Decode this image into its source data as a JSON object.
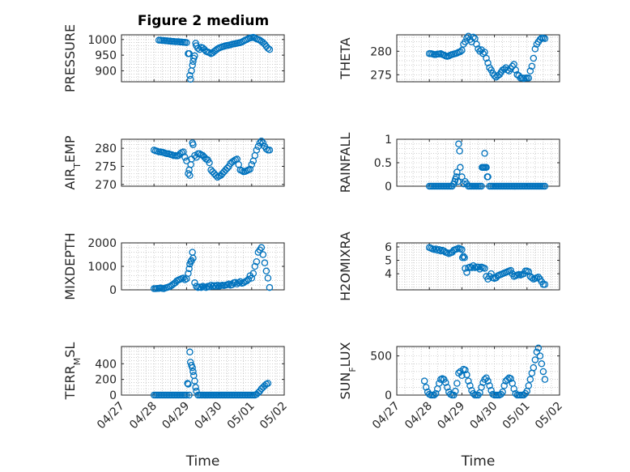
{
  "figure": {
    "title": "Figure 2 medium"
  },
  "colors": {
    "marker": "#0072BD",
    "axis": "#262626",
    "grid": "#b0b0b0"
  },
  "time_ticks": [
    "04/27",
    "04/28",
    "04/29",
    "04/30",
    "05/01",
    "05/02"
  ],
  "chart_data": [
    {
      "type": "scatter",
      "title": "Figure 2 medium",
      "ylabel": "PRESSURE",
      "ylim": [
        865,
        1015
      ],
      "yticks": [
        900,
        950,
        1000
      ],
      "xlim": [
        0,
        5
      ],
      "grid": true,
      "x": [
        1.15,
        1.2,
        1.25,
        1.3,
        1.35,
        1.4,
        1.45,
        1.5,
        1.55,
        1.6,
        1.65,
        1.7,
        1.75,
        1.8,
        1.85,
        1.9,
        1.95,
        2.0,
        2.05,
        2.08,
        2.1,
        2.12,
        2.15,
        2.18,
        2.2,
        2.22,
        2.25,
        2.28,
        2.3,
        2.35,
        2.4,
        2.45,
        2.5,
        2.55,
        2.6,
        2.65,
        2.7,
        2.75,
        2.8,
        2.85,
        2.9,
        2.95,
        3.0,
        3.05,
        3.1,
        3.15,
        3.2,
        3.25,
        3.3,
        3.35,
        3.4,
        3.45,
        3.5,
        3.55,
        3.6,
        3.65,
        3.7,
        3.75,
        3.8,
        3.85,
        3.9,
        3.95,
        4.0,
        4.05,
        4.1,
        4.15,
        4.2,
        4.25,
        4.3,
        4.35,
        4.4,
        4.45,
        4.5,
        4.55
      ],
      "y": [
        998,
        998,
        997,
        997,
        996,
        996,
        995,
        995,
        994,
        994,
        993,
        993,
        993,
        992,
        992,
        991,
        991,
        990,
        955,
        955,
        885,
        873,
        900,
        918,
        930,
        940,
        948,
        988,
        980,
        972,
        968,
        975,
        973,
        968,
        962,
        960,
        958,
        955,
        957,
        962,
        966,
        970,
        973,
        975,
        977,
        978,
        980,
        981,
        982,
        983,
        985,
        986,
        987,
        988,
        989,
        990,
        992,
        995,
        998,
        1000,
        1003,
        1005,
        1006,
        1007,
        1005,
        1002,
        1000,
        998,
        994,
        990,
        985,
        978,
        972,
        968
      ]
    },
    {
      "type": "scatter",
      "ylabel": "THETA",
      "ylim": [
        273.5,
        283.5
      ],
      "yticks": [
        275,
        280
      ],
      "xlim": [
        0,
        5
      ],
      "grid": true,
      "x": [
        1.0,
        1.05,
        1.1,
        1.15,
        1.2,
        1.25,
        1.3,
        1.35,
        1.4,
        1.45,
        1.5,
        1.55,
        1.6,
        1.65,
        1.7,
        1.75,
        1.8,
        1.85,
        1.9,
        1.95,
        2.0,
        2.05,
        2.1,
        2.15,
        2.2,
        2.25,
        2.3,
        2.35,
        2.4,
        2.45,
        2.5,
        2.55,
        2.6,
        2.65,
        2.7,
        2.75,
        2.8,
        2.85,
        2.9,
        2.95,
        3.0,
        3.05,
        3.1,
        3.15,
        3.2,
        3.25,
        3.3,
        3.35,
        3.4,
        3.45,
        3.5,
        3.55,
        3.6,
        3.65,
        3.7,
        3.75,
        3.8,
        3.85,
        3.9,
        3.95,
        4.0,
        4.05,
        4.1,
        4.15,
        4.2,
        4.25,
        4.3,
        4.35,
        4.4,
        4.45,
        4.5,
        4.55
      ],
      "y": [
        279.5,
        279.5,
        279.4,
        279.3,
        279.3,
        279.4,
        279.4,
        279.5,
        279.3,
        279.2,
        279.0,
        278.9,
        279.0,
        279.2,
        279.3,
        279.4,
        279.5,
        279.6,
        279.8,
        279.9,
        280.2,
        281.5,
        282.0,
        282.8,
        283.2,
        282.5,
        282.0,
        283.0,
        282.7,
        281.5,
        280.5,
        280.0,
        280.3,
        279.5,
        279.8,
        278.5,
        277.5,
        276.5,
        276.0,
        275.3,
        274.8,
        274.5,
        274.8,
        275.0,
        275.5,
        276.0,
        276.2,
        276.5,
        276.0,
        275.8,
        276.3,
        276.8,
        277.2,
        276.0,
        275.0,
        274.8,
        274.3,
        274.3,
        274.2,
        274.3,
        274.3,
        274.3,
        275.8,
        276.8,
        278.5,
        280.5,
        281.5,
        282.0,
        282.5,
        282.8,
        282.8,
        282.7
      ]
    },
    {
      "type": "scatter",
      "ylabel": "AIR_TEMP",
      "ylim": [
        269.5,
        282.5
      ],
      "yticks": [
        270,
        275,
        280
      ],
      "xlim": [
        0,
        5
      ],
      "grid": true,
      "x": [
        1.0,
        1.05,
        1.1,
        1.15,
        1.2,
        1.25,
        1.3,
        1.35,
        1.4,
        1.45,
        1.5,
        1.55,
        1.6,
        1.65,
        1.7,
        1.75,
        1.8,
        1.85,
        1.9,
        1.95,
        2.0,
        2.05,
        2.08,
        2.1,
        2.13,
        2.15,
        2.18,
        2.2,
        2.25,
        2.3,
        2.35,
        2.4,
        2.45,
        2.5,
        2.55,
        2.6,
        2.65,
        2.7,
        2.75,
        2.8,
        2.85,
        2.9,
        2.95,
        3.0,
        3.05,
        3.1,
        3.15,
        3.2,
        3.25,
        3.3,
        3.35,
        3.4,
        3.45,
        3.5,
        3.55,
        3.6,
        3.65,
        3.7,
        3.75,
        3.8,
        3.85,
        3.9,
        3.95,
        4.0,
        4.05,
        4.1,
        4.15,
        4.2,
        4.25,
        4.3,
        4.35,
        4.4,
        4.45,
        4.5,
        4.55
      ],
      "y": [
        279.5,
        279.3,
        279.2,
        279.0,
        279.0,
        278.9,
        278.8,
        278.6,
        278.5,
        278.5,
        278.3,
        278.2,
        278.0,
        278.0,
        277.9,
        278.0,
        278.5,
        278.8,
        279.0,
        277.5,
        276.5,
        273.0,
        274.0,
        272.5,
        275.5,
        277.0,
        281.5,
        281.0,
        278.0,
        277.5,
        278.5,
        278.5,
        278.2,
        278.0,
        277.5,
        277.0,
        276.8,
        276.0,
        274.0,
        273.5,
        273.0,
        272.5,
        272.0,
        272.3,
        272.5,
        273.0,
        273.5,
        274.0,
        274.5,
        275.0,
        275.8,
        276.2,
        276.5,
        276.8,
        277.0,
        275.5,
        274.0,
        273.8,
        273.5,
        273.6,
        273.8,
        274.0,
        274.2,
        275.5,
        276.5,
        278.0,
        279.5,
        280.5,
        281.5,
        282.0,
        281.5,
        280.5,
        279.8,
        279.5,
        279.5
      ]
    },
    {
      "type": "scatter",
      "ylabel": "RAINFALL",
      "ylim": [
        0,
        1
      ],
      "yticks": [
        0,
        0.5,
        1
      ],
      "xlim": [
        0,
        5
      ],
      "grid": true,
      "x": [
        1.0,
        1.05,
        1.1,
        1.15,
        1.2,
        1.25,
        1.3,
        1.35,
        1.4,
        1.45,
        1.5,
        1.55,
        1.6,
        1.65,
        1.7,
        1.75,
        1.78,
        1.8,
        1.83,
        1.85,
        1.88,
        1.9,
        1.93,
        1.95,
        2.0,
        2.05,
        2.1,
        2.15,
        2.2,
        2.25,
        2.3,
        2.35,
        2.4,
        2.45,
        2.5,
        2.55,
        2.6,
        2.62,
        2.65,
        2.68,
        2.7,
        2.72,
        2.75,
        2.78,
        2.8,
        2.85,
        2.9,
        2.95,
        3.0,
        3.05,
        3.1,
        3.15,
        3.2,
        3.25,
        3.3,
        3.35,
        3.4,
        3.45,
        3.5,
        3.55,
        3.6,
        3.65,
        3.7,
        3.75,
        3.8,
        3.85,
        3.9,
        3.95,
        4.0,
        4.05,
        4.1,
        4.15,
        4.2,
        4.25,
        4.3,
        4.35,
        4.4,
        4.45,
        4.5,
        4.55
      ],
      "y": [
        0,
        0,
        0,
        0,
        0,
        0,
        0,
        0,
        0,
        0,
        0,
        0,
        0,
        0,
        0,
        0.05,
        0.1,
        0.15,
        0.2,
        0.3,
        0.1,
        0.9,
        0.75,
        0.4,
        0.2,
        0.05,
        0.1,
        0.05,
        0,
        0,
        0,
        0,
        0,
        0,
        0,
        0,
        0,
        0.4,
        0.4,
        0.4,
        0.7,
        0.4,
        0.4,
        0.2,
        0.2,
        0,
        0,
        0,
        0,
        0,
        0,
        0,
        0,
        0,
        0,
        0,
        0,
        0,
        0,
        0,
        0,
        0,
        0,
        0,
        0,
        0,
        0,
        0,
        0,
        0,
        0,
        0,
        0,
        0,
        0,
        0,
        0,
        0,
        0,
        0
      ]
    },
    {
      "type": "scatter",
      "ylabel": "MIXDEPTH",
      "ylim": [
        0,
        2000
      ],
      "yticks": [
        0,
        1000,
        2000
      ],
      "xlim": [
        0,
        5
      ],
      "grid": true,
      "x": [
        1.0,
        1.05,
        1.1,
        1.15,
        1.2,
        1.25,
        1.3,
        1.35,
        1.4,
        1.45,
        1.5,
        1.55,
        1.6,
        1.65,
        1.7,
        1.75,
        1.8,
        1.85,
        1.9,
        1.95,
        2.0,
        2.05,
        2.08,
        2.1,
        2.13,
        2.15,
        2.18,
        2.2,
        2.25,
        2.3,
        2.35,
        2.4,
        2.45,
        2.5,
        2.55,
        2.6,
        2.65,
        2.7,
        2.75,
        2.8,
        2.85,
        2.9,
        2.95,
        3.0,
        3.05,
        3.1,
        3.15,
        3.2,
        3.25,
        3.3,
        3.35,
        3.4,
        3.45,
        3.5,
        3.55,
        3.6,
        3.65,
        3.7,
        3.75,
        3.8,
        3.85,
        3.9,
        3.95,
        4.0,
        4.05,
        4.1,
        4.15,
        4.2,
        4.25,
        4.3,
        4.35,
        4.4,
        4.45,
        4.5,
        4.55
      ],
      "y": [
        50,
        50,
        60,
        60,
        80,
        60,
        50,
        80,
        100,
        120,
        150,
        200,
        250,
        300,
        380,
        420,
        450,
        480,
        500,
        430,
        470,
        700,
        900,
        1100,
        1200,
        1250,
        1600,
        1350,
        300,
        150,
        100,
        120,
        100,
        150,
        120,
        100,
        150,
        130,
        200,
        150,
        180,
        150,
        200,
        150,
        180,
        200,
        180,
        200,
        220,
        250,
        200,
        220,
        300,
        320,
        250,
        300,
        350,
        280,
        300,
        350,
        380,
        450,
        600,
        500,
        700,
        1000,
        1200,
        1600,
        1700,
        1800,
        1500,
        1150,
        800,
        500,
        100
      ]
    },
    {
      "type": "scatter",
      "ylabel": "H2OMIXRA",
      "ylim": [
        2.8,
        6.3
      ],
      "yticks": [
        4,
        5,
        6
      ],
      "xlim": [
        0,
        5
      ],
      "grid": true,
      "x": [
        1.0,
        1.05,
        1.1,
        1.15,
        1.2,
        1.25,
        1.3,
        1.35,
        1.4,
        1.45,
        1.5,
        1.55,
        1.6,
        1.65,
        1.7,
        1.75,
        1.8,
        1.85,
        1.9,
        1.95,
        2.0,
        2.02,
        2.05,
        2.08,
        2.1,
        2.15,
        2.2,
        2.25,
        2.3,
        2.35,
        2.4,
        2.45,
        2.5,
        2.55,
        2.6,
        2.65,
        2.7,
        2.75,
        2.8,
        2.85,
        2.9,
        2.95,
        3.0,
        3.05,
        3.1,
        3.15,
        3.2,
        3.25,
        3.3,
        3.35,
        3.4,
        3.45,
        3.5,
        3.55,
        3.6,
        3.65,
        3.7,
        3.75,
        3.8,
        3.85,
        3.9,
        3.95,
        4.0,
        4.05,
        4.1,
        4.15,
        4.2,
        4.25,
        4.3,
        4.35,
        4.4,
        4.45,
        4.5,
        4.55
      ],
      "y": [
        5.95,
        5.9,
        5.85,
        5.8,
        5.85,
        5.75,
        5.8,
        5.7,
        5.75,
        5.7,
        5.6,
        5.55,
        5.5,
        5.55,
        5.6,
        5.75,
        5.8,
        5.85,
        5.9,
        5.85,
        5.8,
        5.2,
        5.3,
        5.2,
        4.4,
        4.1,
        4.45,
        4.5,
        4.45,
        4.6,
        4.45,
        4.5,
        4.5,
        4.35,
        4.5,
        4.45,
        4.4,
        3.8,
        3.6,
        3.8,
        4.0,
        3.7,
        3.65,
        3.7,
        3.85,
        3.9,
        3.95,
        4.0,
        4.05,
        4.1,
        4.15,
        4.2,
        4.25,
        4.0,
        3.8,
        3.85,
        3.9,
        3.95,
        3.9,
        3.95,
        4.0,
        4.2,
        4.2,
        4.15,
        3.8,
        3.7,
        3.6,
        3.65,
        3.7,
        3.75,
        3.6,
        3.4,
        3.2,
        3.2
      ]
    },
    {
      "type": "scatter",
      "ylabel": "TERR_MSL",
      "ylim": [
        0,
        620
      ],
      "yticks": [
        0,
        200,
        400
      ],
      "xlim": [
        0,
        5
      ],
      "grid": true,
      "x": [
        1.0,
        1.05,
        1.1,
        1.15,
        1.2,
        1.25,
        1.3,
        1.35,
        1.4,
        1.45,
        1.5,
        1.55,
        1.6,
        1.65,
        1.7,
        1.75,
        1.8,
        1.85,
        1.9,
        1.95,
        2.0,
        2.03,
        2.05,
        2.08,
        2.1,
        2.12,
        2.15,
        2.18,
        2.2,
        2.22,
        2.25,
        2.28,
        2.3,
        2.35,
        2.4,
        2.45,
        2.5,
        2.55,
        2.6,
        2.65,
        2.7,
        2.75,
        2.8,
        2.85,
        2.9,
        2.95,
        3.0,
        3.05,
        3.1,
        3.15,
        3.2,
        3.25,
        3.3,
        3.35,
        3.4,
        3.45,
        3.5,
        3.55,
        3.6,
        3.65,
        3.7,
        3.75,
        3.8,
        3.85,
        3.9,
        3.95,
        4.0,
        4.05,
        4.1,
        4.15,
        4.2,
        4.25,
        4.3,
        4.35,
        4.4,
        4.45,
        4.5
      ],
      "y": [
        0,
        0,
        0,
        0,
        0,
        0,
        0,
        0,
        0,
        0,
        0,
        0,
        0,
        0,
        0,
        0,
        0,
        0,
        0,
        0,
        0,
        150,
        140,
        0,
        550,
        420,
        380,
        350,
        300,
        250,
        180,
        100,
        50,
        0,
        0,
        0,
        0,
        0,
        0,
        0,
        0,
        0,
        0,
        0,
        0,
        0,
        0,
        0,
        0,
        0,
        0,
        0,
        0,
        0,
        0,
        0,
        0,
        0,
        0,
        0,
        0,
        0,
        0,
        0,
        0,
        0,
        0,
        0,
        0,
        10,
        30,
        50,
        80,
        100,
        120,
        140,
        150
      ]
    },
    {
      "type": "scatter",
      "ylabel": "SUN_FLUX",
      "ylim": [
        0,
        620
      ],
      "yticks": [
        0,
        500
      ],
      "xlim": [
        0,
        5
      ],
      "grid": true,
      "x": [
        0.85,
        0.9,
        0.95,
        1.0,
        1.05,
        1.1,
        1.15,
        1.2,
        1.25,
        1.3,
        1.35,
        1.4,
        1.45,
        1.5,
        1.55,
        1.6,
        1.65,
        1.7,
        1.75,
        1.8,
        1.85,
        1.9,
        1.95,
        2.0,
        2.05,
        2.1,
        2.15,
        2.2,
        2.25,
        2.3,
        2.35,
        2.4,
        2.45,
        2.5,
        2.55,
        2.6,
        2.65,
        2.7,
        2.75,
        2.8,
        2.85,
        2.9,
        2.95,
        3.0,
        3.05,
        3.1,
        3.15,
        3.2,
        3.25,
        3.3,
        3.35,
        3.4,
        3.45,
        3.5,
        3.55,
        3.6,
        3.65,
        3.7,
        3.75,
        3.8,
        3.85,
        3.9,
        3.95,
        4.0,
        4.05,
        4.1,
        4.15,
        4.2,
        4.25,
        4.3,
        4.35,
        4.4,
        4.45,
        4.5,
        4.55
      ],
      "y": [
        180,
        100,
        40,
        10,
        0,
        0,
        0,
        20,
        80,
        150,
        200,
        210,
        200,
        160,
        100,
        40,
        10,
        0,
        0,
        50,
        150,
        280,
        300,
        250,
        330,
        320,
        260,
        180,
        120,
        60,
        20,
        0,
        0,
        0,
        30,
        100,
        160,
        200,
        220,
        180,
        120,
        60,
        10,
        0,
        0,
        0,
        0,
        10,
        40,
        120,
        180,
        200,
        220,
        210,
        150,
        80,
        20,
        0,
        0,
        0,
        0,
        0,
        20,
        50,
        120,
        200,
        280,
        350,
        450,
        550,
        600,
        500,
        400,
        300,
        200
      ]
    }
  ],
  "axes": [
    {
      "ylabel_main": "PRESSURE",
      "ylabel_sub": ""
    },
    {
      "ylabel_main": "THETA",
      "ylabel_sub": ""
    },
    {
      "ylabel_main": "AIR",
      "ylabel_sub": "T",
      "ylabel_tail": "EMP"
    },
    {
      "ylabel_main": "RAINFALL",
      "ylabel_sub": ""
    },
    {
      "ylabel_main": "MIXDEPTH",
      "ylabel_sub": ""
    },
    {
      "ylabel_main": "H2OMIXRA",
      "ylabel_sub": ""
    },
    {
      "ylabel_main": "TERR",
      "ylabel_sub": "M",
      "ylabel_tail": "SL"
    },
    {
      "ylabel_main": "SUN",
      "ylabel_sub": "F",
      "ylabel_tail": "LUX"
    }
  ],
  "xlabel": "Time"
}
